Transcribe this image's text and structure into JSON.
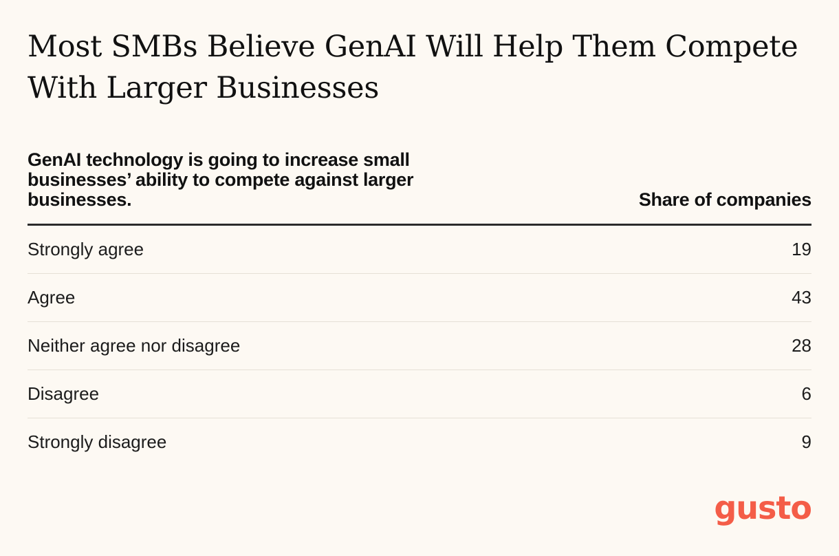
{
  "brand": {
    "logo_text": "gusto",
    "logo_color": "#f45d48"
  },
  "chart_data": {
    "type": "table",
    "title": "Most SMBs Believe GenAI Will Help Them Compete With Larger Businesses",
    "row_header": "GenAI technology is going to increase small businesses’ ability to compete against larger businesses.",
    "value_header": "Share of companies",
    "categories": [
      "Strongly agree",
      "Agree",
      "Neither agree nor disagree",
      "Disagree",
      "Strongly disagree"
    ],
    "values": [
      19,
      43,
      28,
      6,
      9
    ]
  }
}
